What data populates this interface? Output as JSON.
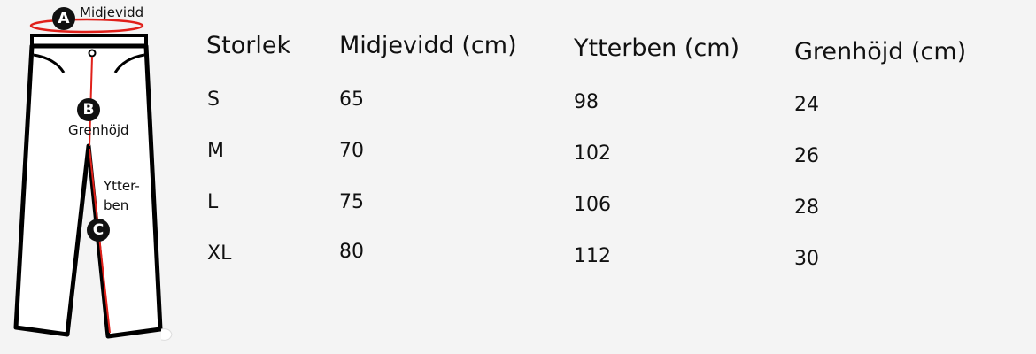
{
  "diagram": {
    "label_a": "Midjevidd",
    "label_b": "Grenhöjd",
    "label_c_line1": "Ytter-",
    "label_c_line2": "ben",
    "badge_a": "A",
    "badge_b": "B",
    "badge_c": "C",
    "accent_color": "#e0201a"
  },
  "table": {
    "headers": [
      "Storlek",
      "Midjevidd (cm)",
      "Ytterben (cm)",
      "Grenhöjd (cm)"
    ],
    "rows": [
      [
        "S",
        "65",
        "98",
        "24"
      ],
      [
        "M",
        "70",
        "102",
        "26"
      ],
      [
        "L",
        "75",
        "106",
        "28"
      ],
      [
        "XL",
        "80",
        "112",
        "30"
      ]
    ]
  }
}
